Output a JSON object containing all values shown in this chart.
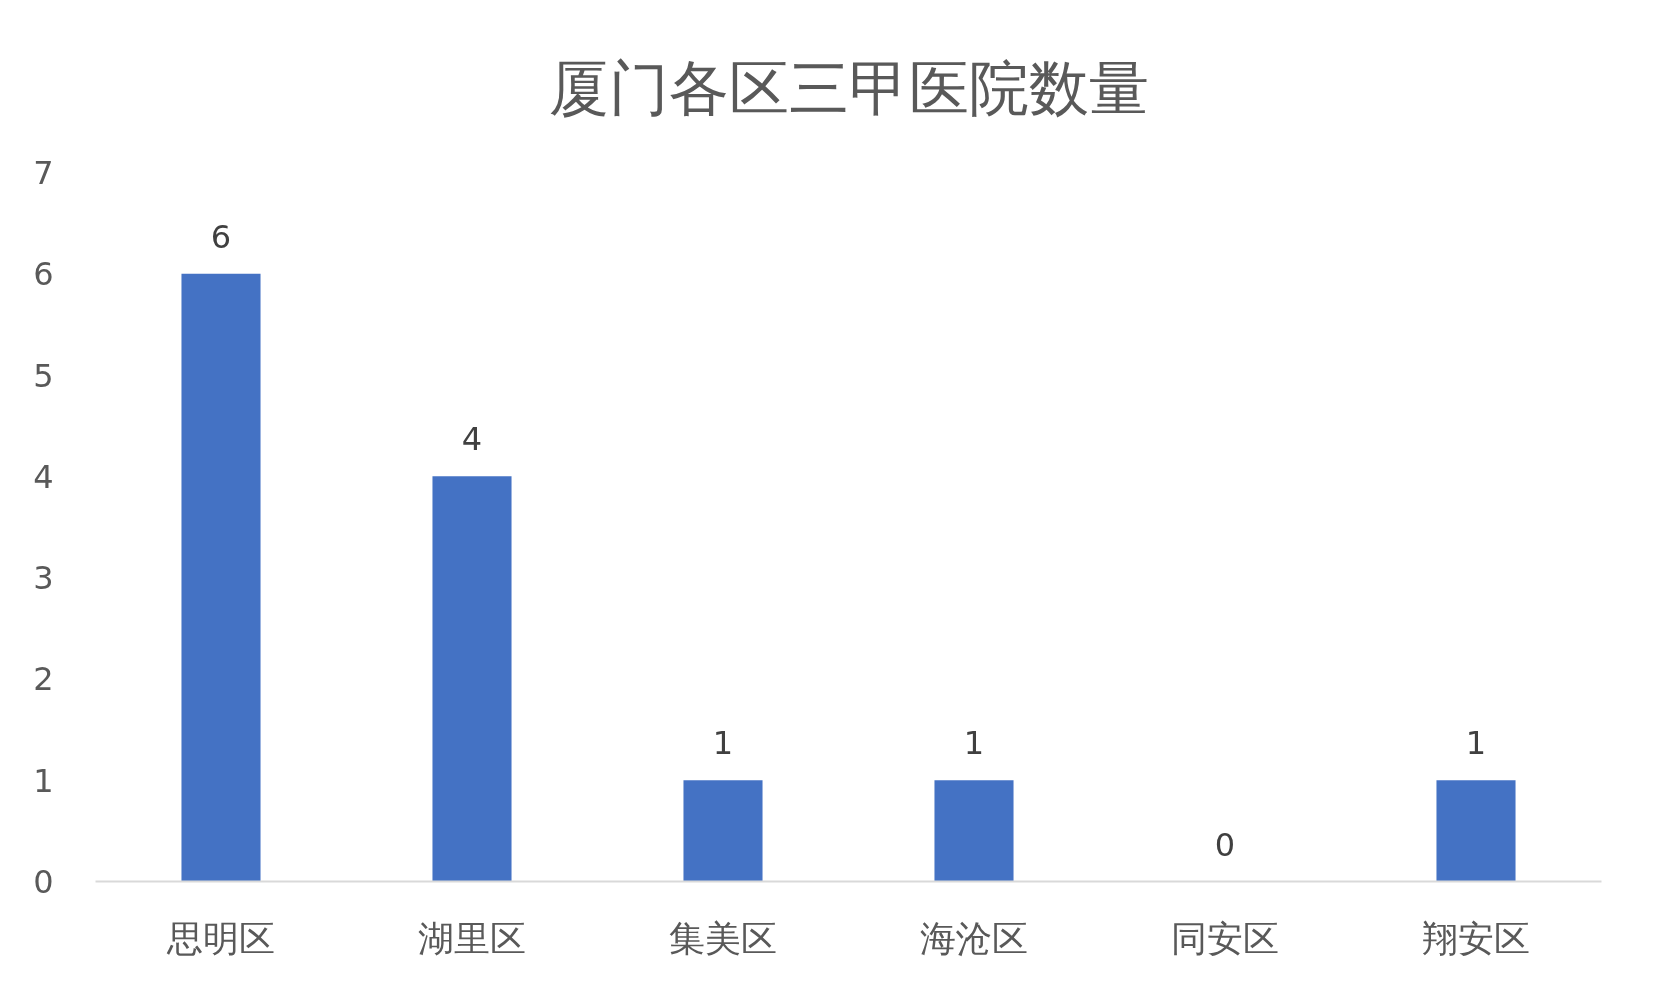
{
  "chart_data": {
    "type": "bar",
    "title": "厦门各区三甲医院数量",
    "categories": [
      "思明区",
      "湖里区",
      "集美区",
      "海沧区",
      "同安区",
      "翔安区"
    ],
    "values": [
      6,
      4,
      1,
      1,
      0,
      1
    ],
    "color": "#4472c4",
    "ylim": [
      0,
      7
    ],
    "yticks": [
      0,
      1,
      2,
      3,
      4,
      5,
      6,
      7
    ],
    "grid": false,
    "data_labels": true
  }
}
